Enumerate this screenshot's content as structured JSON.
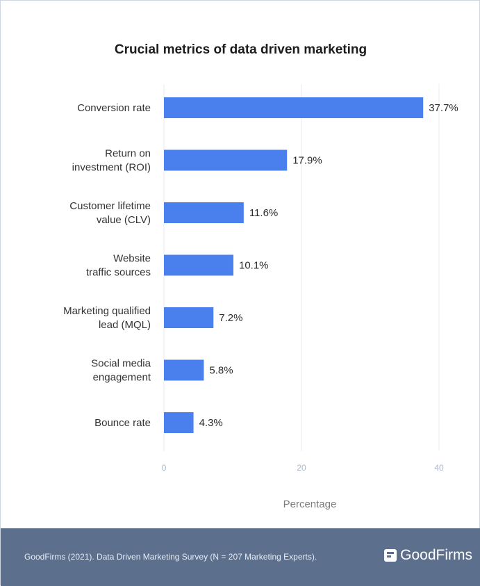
{
  "chart_data": {
    "type": "bar",
    "orientation": "horizontal",
    "title": "Crucial metrics of data driven marketing",
    "xlabel": "Percentage",
    "ylabel": "",
    "xlim": [
      0,
      40
    ],
    "x_ticks": [
      "0",
      "20",
      "40"
    ],
    "grid": true,
    "categories": [
      [
        "Conversion rate"
      ],
      [
        "Return on",
        "investment (ROI)"
      ],
      [
        "Customer lifetime",
        "value (CLV)"
      ],
      [
        "Website",
        "traffic sources"
      ],
      [
        "Marketing qualified",
        "lead (MQL)"
      ],
      [
        "Social media",
        "engagement"
      ],
      [
        "Bounce rate"
      ]
    ],
    "values": [
      37.7,
      17.9,
      11.6,
      10.1,
      7.2,
      5.8,
      4.3
    ],
    "value_labels": [
      "37.7%",
      "17.9%",
      "11.6%",
      "10.1%",
      "7.2%",
      "5.8%",
      "4.3%"
    ],
    "bar_color": "#4a80ed"
  },
  "footer": {
    "source": "GoodFirms (2021). Data Driven Marketing Survey (N = 207 Marketing Experts).",
    "brand": "GoodFirms",
    "background": "#5c6f8c"
  }
}
